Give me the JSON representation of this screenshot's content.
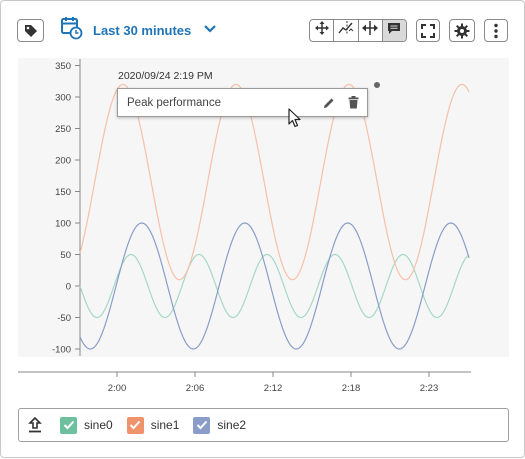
{
  "toolbar": {
    "time_range": "Last 30 minutes",
    "icons": [
      "tag-icon",
      "calendar-clock-icon",
      "chevron-down-icon",
      "pan-icon",
      "zoom-xy-icon",
      "zoom-x-icon",
      "annotation-icon",
      "fullscreen-icon",
      "gear-icon",
      "more-vertical-icon"
    ],
    "active_mode": "annotation"
  },
  "annotation": {
    "timestamp": "2020/09/24 2:19 PM",
    "text": "Peak performance"
  },
  "legend": {
    "items": [
      {
        "label": "sine0",
        "color": "#6dbf9d",
        "checked": true
      },
      {
        "label": "sine1",
        "color": "#f0926b",
        "checked": true
      },
      {
        "label": "sine2",
        "color": "#8a9dc9",
        "checked": true
      }
    ]
  },
  "chart_data": {
    "type": "line",
    "y_ticks": [
      350,
      300,
      250,
      200,
      150,
      100,
      50,
      0,
      -50,
      -100
    ],
    "x_ticks": [
      "2:00",
      "2:06",
      "2:12",
      "2:18",
      "2:23"
    ],
    "ylim": [
      -110,
      360
    ],
    "series": [
      {
        "name": "sine0",
        "color": "#a7d8c6",
        "amplitude": 50,
        "offset": 0,
        "period_px": 68
      },
      {
        "name": "sine1",
        "color": "#f7c0a8",
        "amplitude": 155,
        "offset": 165,
        "period_px": 113
      },
      {
        "name": "sine2",
        "color": "#8a9dc9",
        "amplitude": 100,
        "offset": 0,
        "period_px": 103
      }
    ]
  }
}
